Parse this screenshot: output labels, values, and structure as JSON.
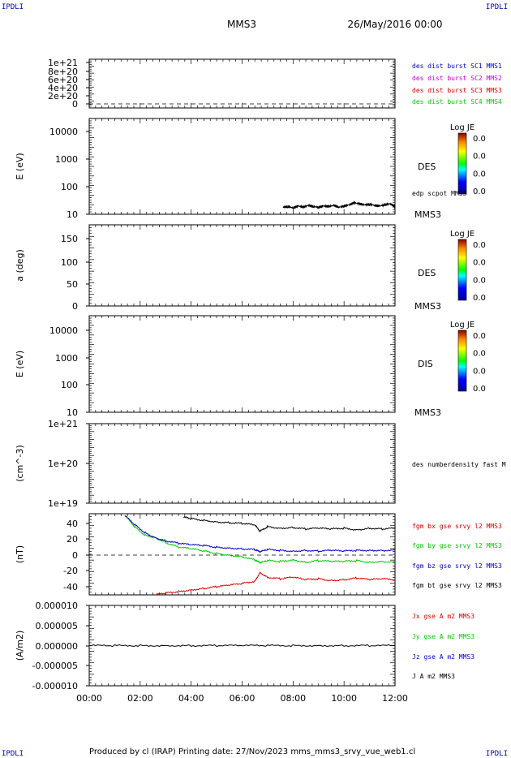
{
  "header": {
    "corner_text": "IPDLI",
    "spacecraft": "MMS3",
    "datetime": "26/May/2016 00:00"
  },
  "footer": {
    "text": "Produced by cl (IRAP)   Printing date: 27/Nov/2023   mms_mms3_srvy_vue_web1.cl"
  },
  "colors": {
    "blue": "#0000cc",
    "magenta": "#cc00cc",
    "red": "#dd0000",
    "green": "#00cc00",
    "black": "#000000"
  },
  "chart_data": [
    {
      "type": "line",
      "panel": "des-dist",
      "yticks": [
        "1e+21",
        "8e+20",
        "6e+20",
        "4e+20",
        "2e+20",
        "0"
      ],
      "ylim": [
        0,
        1e+21
      ],
      "dashed_zero": true,
      "legend": [
        {
          "text": "des dist burst SC1 MMS1",
          "color": "#0000cc"
        },
        {
          "text": "des dist burst SC2 MMS2",
          "color": "#cc00cc"
        },
        {
          "text": "des dist burst SC3 MMS3",
          "color": "#dd0000"
        },
        {
          "text": "des dist burst SC4 MMS4",
          "color": "#00cc00"
        }
      ]
    },
    {
      "type": "heatmap",
      "panel": "des-energy",
      "ylabel": "E (eV)",
      "yscale": "log",
      "yticks": [
        "10000",
        "1000",
        "100",
        "10"
      ],
      "ylim": [
        10,
        20000
      ],
      "colorbar": {
        "title": "Log JE",
        "labels": [
          "0.0",
          "0.0",
          "0.0",
          "0.0"
        ]
      },
      "label": "DES",
      "overlay_label": "edp scpot MMS3",
      "sc_label": "MMS3",
      "overlay_series": {
        "name": "edp scpot MMS3",
        "color": "#000000",
        "x": [
          7.6,
          7.8,
          8.0,
          8.2,
          8.4,
          8.6,
          8.8,
          9.0,
          9.2,
          9.4,
          9.6,
          9.8,
          10.0,
          10.2,
          10.4,
          10.6,
          10.8,
          11.0,
          11.2,
          11.4,
          11.6,
          11.8,
          12.0
        ],
        "values": [
          18,
          19,
          17,
          20,
          18,
          21,
          19,
          18,
          20,
          19,
          21,
          18,
          20,
          22,
          26,
          24,
          22,
          23,
          21,
          20,
          22,
          24,
          19
        ]
      }
    },
    {
      "type": "heatmap",
      "panel": "des-pitch",
      "ylabel": "a (deg)",
      "yticks": [
        "150",
        "100",
        "50",
        "0"
      ],
      "ylim": [
        0,
        180
      ],
      "colorbar": {
        "title": "Log JE",
        "labels": [
          "0.0",
          "0.0",
          "0.0",
          "0.0"
        ]
      },
      "label": "DES",
      "sc_label": "MMS3"
    },
    {
      "type": "heatmap",
      "panel": "dis-energy",
      "ylabel": "E (eV)",
      "yscale": "log",
      "yticks": [
        "10000",
        "1000",
        "100",
        "10"
      ],
      "ylim": [
        10,
        20000
      ],
      "colorbar": {
        "title": "Log JE",
        "labels": [
          "0.0",
          "0.0",
          "0.0",
          "0.0"
        ]
      },
      "label": "DIS",
      "sc_label": "MMS3"
    },
    {
      "type": "line",
      "panel": "density",
      "ylabel": "(cm^-3)",
      "yscale": "log",
      "yticks": [
        "1e+21",
        "1e+20",
        "1e+19"
      ],
      "ylim": [
        1e+19,
        1e+21
      ],
      "legend": [
        {
          "text": "des numberdensity fast M",
          "color": "#000000"
        }
      ]
    },
    {
      "type": "line",
      "panel": "fgm",
      "ylabel": "(nT)",
      "yticks": [
        "40",
        "20",
        "0",
        "-20",
        "-40"
      ],
      "ylim": [
        -50,
        50
      ],
      "dashed_zero": true,
      "legend": [
        {
          "text": "fgm bx gse srvy l2 MMS3",
          "color": "#dd0000"
        },
        {
          "text": "fgm by gse srvy l2 MMS3",
          "color": "#00cc00"
        },
        {
          "text": "fgm bz gse srvy l2 MMS3",
          "color": "#0000cc"
        },
        {
          "text": "fgm bt gse srvy l2 MMS3",
          "color": "#000000"
        }
      ],
      "series": [
        {
          "key": "bx",
          "color": "#dd0000",
          "x": [
            2.6,
            3.0,
            3.5,
            4.0,
            4.5,
            5.0,
            5.5,
            6.0,
            6.5,
            6.7,
            7.0,
            7.5,
            8.0,
            8.5,
            9.0,
            9.5,
            10.0,
            10.5,
            11.0,
            11.5,
            12.0
          ],
          "values": [
            -50,
            -48,
            -46,
            -44,
            -42,
            -40,
            -38,
            -36,
            -33,
            -22,
            -28,
            -30,
            -28,
            -31,
            -30,
            -32,
            -31,
            -29,
            -31,
            -30,
            -31
          ]
        },
        {
          "key": "by",
          "color": "#00cc00",
          "x": [
            1.4,
            1.8,
            2.2,
            2.6,
            3.0,
            3.5,
            4.0,
            4.5,
            5.0,
            5.5,
            6.0,
            6.5,
            6.7,
            7.0,
            7.5,
            8.0,
            8.5,
            9.0,
            9.5,
            10.0,
            10.5,
            11.0,
            11.5,
            12.0
          ],
          "values": [
            50,
            35,
            25,
            22,
            16,
            10,
            8,
            5,
            2,
            0,
            -2,
            -6,
            -10,
            -7,
            -8,
            -6,
            -9,
            -7,
            -8,
            -8,
            -7,
            -9,
            -8,
            -9
          ]
        },
        {
          "key": "bz",
          "color": "#0000cc",
          "x": [
            1.4,
            1.8,
            2.2,
            2.6,
            3.0,
            3.5,
            4.0,
            4.5,
            5.0,
            5.5,
            6.0,
            6.5,
            6.7,
            7.0,
            7.5,
            8.0,
            8.5,
            9.0,
            9.5,
            10.0,
            10.5,
            11.0,
            11.5,
            12.0
          ],
          "values": [
            50,
            38,
            28,
            22,
            18,
            15,
            13,
            12,
            10,
            9,
            8,
            7,
            4,
            7,
            6,
            5,
            6,
            5,
            6,
            5,
            6,
            6,
            6,
            6
          ]
        },
        {
          "key": "bt",
          "color": "#000000",
          "x": [
            3.7,
            4.0,
            4.5,
            5.0,
            5.5,
            6.0,
            6.5,
            6.7,
            7.0,
            7.5,
            8.0,
            8.5,
            9.0,
            9.5,
            10.0,
            10.5,
            11.0,
            11.5,
            12.0
          ],
          "values": [
            48,
            46,
            44,
            42,
            41,
            40,
            38,
            30,
            36,
            34,
            35,
            33,
            34,
            33,
            34,
            32,
            34,
            33,
            34
          ]
        }
      ]
    },
    {
      "type": "line",
      "panel": "current",
      "ylabel": "(A/m2)",
      "yticks": [
        "0.000010",
        "0.000005",
        "0.000000",
        "-0.000005",
        "-0.000010"
      ],
      "ylim": [
        -1e-05,
        1e-05
      ],
      "legend": [
        {
          "text": "Jx gse A m2 MMS3",
          "color": "#dd0000"
        },
        {
          "text": "Jy gse A m2 MMS3",
          "color": "#00cc00"
        },
        {
          "text": "Jz gse A m2 MMS3",
          "color": "#0000cc"
        },
        {
          "text": "J A m2 MMS3",
          "color": "#000000"
        }
      ],
      "series": [
        {
          "key": "j",
          "color": "#000000",
          "x": [
            0,
            1,
            2,
            3,
            4,
            5,
            6,
            7,
            8,
            9,
            10,
            11,
            12
          ],
          "values": [
            0,
            0,
            0,
            0,
            0,
            0,
            0,
            0,
            0,
            0,
            0,
            0,
            0
          ]
        }
      ]
    }
  ],
  "xaxis": {
    "xlim": [
      0,
      12
    ],
    "ticks": [
      "00:00",
      "02:00",
      "04:00",
      "06:00",
      "08:00",
      "10:00",
      "12:00"
    ]
  }
}
